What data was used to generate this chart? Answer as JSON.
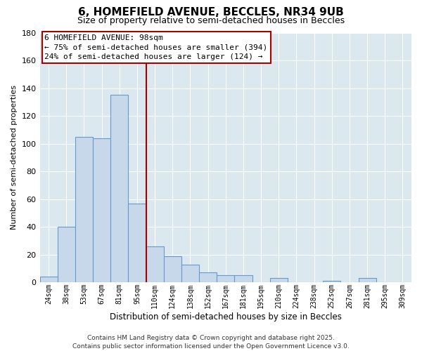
{
  "title": "6, HOMEFIELD AVENUE, BECCLES, NR34 9UB",
  "subtitle": "Size of property relative to semi-detached houses in Beccles",
  "xlabel": "Distribution of semi-detached houses by size in Beccles",
  "ylabel": "Number of semi-detached properties",
  "bar_labels": [
    "24sqm",
    "38sqm",
    "53sqm",
    "67sqm",
    "81sqm",
    "95sqm",
    "110sqm",
    "124sqm",
    "138sqm",
    "152sqm",
    "167sqm",
    "181sqm",
    "195sqm",
    "210sqm",
    "224sqm",
    "238sqm",
    "252sqm",
    "267sqm",
    "281sqm",
    "295sqm",
    "309sqm"
  ],
  "bar_values": [
    4,
    40,
    105,
    104,
    135,
    57,
    26,
    19,
    13,
    7,
    5,
    5,
    0,
    3,
    0,
    0,
    1,
    0,
    3,
    0,
    0
  ],
  "bar_color": "#c8d8eb",
  "bar_edge_color": "#6699cc",
  "vline_color": "#aa0000",
  "vline_x": 5.5,
  "ylim": [
    0,
    180
  ],
  "yticks": [
    0,
    20,
    40,
    60,
    80,
    100,
    120,
    140,
    160,
    180
  ],
  "annotation_line1": "6 HOMEFIELD AVENUE: 98sqm",
  "annotation_line2": "← 75% of semi-detached houses are smaller (394)",
  "annotation_line3": "24% of semi-detached houses are larger (124) →",
  "fig_bg_color": "#ffffff",
  "plot_bg_color": "#dce8f0",
  "grid_color": "#ffffff",
  "footnote": "Contains HM Land Registry data © Crown copyright and database right 2025.\nContains public sector information licensed under the Open Government Licence v3.0.",
  "title_fontsize": 11,
  "subtitle_fontsize": 9,
  "annotation_fontsize": 8,
  "footnote_fontsize": 6.5,
  "ylabel_fontsize": 8,
  "xlabel_fontsize": 8.5
}
